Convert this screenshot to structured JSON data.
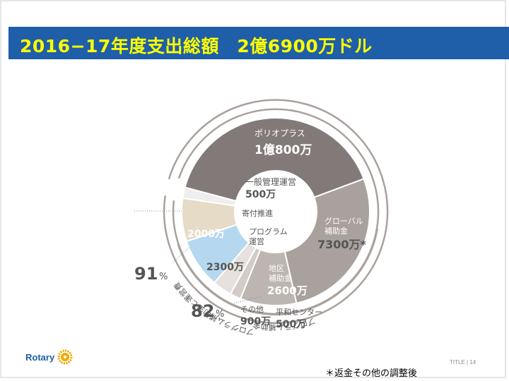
{
  "slide": {
    "title": "2016−17年度支出総額　2億6900万ドル",
    "logo_text": "Rotary",
    "footer_label": "TITLE",
    "page_number": "14",
    "footnote": "＊返金その他の調整後"
  },
  "chart_data": {
    "type": "pie",
    "style": "donut",
    "title": "2016−17年度支出総額 2億6900万ドル",
    "unit": "万ドル",
    "total": 26900,
    "slices": [
      {
        "key": "polio",
        "name": "ポリオプラス",
        "name_lines": [
          "ポリオプラス"
        ],
        "value": 10800,
        "value_label": "1億800万",
        "color": "#827a78"
      },
      {
        "key": "global",
        "name": "グローバル補助金",
        "name_lines": [
          "グローバル",
          "補助金"
        ],
        "value": 7300,
        "value_label": "7300万*",
        "color": "#a9a19d"
      },
      {
        "key": "district",
        "name": "地区補助金",
        "name_lines": [
          "地区",
          "補助金"
        ],
        "value": 2600,
        "value_label": "2600万",
        "color": "#bdb5b1"
      },
      {
        "key": "peace",
        "name": "平和センター",
        "name_lines": [
          "平和センター"
        ],
        "value": 500,
        "value_label": "500万",
        "color": "#d2cbc7"
      },
      {
        "key": "other",
        "name": "その他",
        "name_lines": [
          "その他"
        ],
        "value": 900,
        "value_label": "900万",
        "color": "#e6e1de"
      },
      {
        "key": "program_ops",
        "name": "プログラム運営",
        "name_lines": [
          "プログラム",
          "運営"
        ],
        "value": 2300,
        "value_label": "2300万",
        "color": "#b5d8f0"
      },
      {
        "key": "fundraising",
        "name": "寄付推進",
        "name_lines": [
          "寄付推進"
        ],
        "value": 2000,
        "value_label": "2000万",
        "color": "#e6dbc6"
      },
      {
        "key": "admin",
        "name": "一般管理運営",
        "name_lines": [
          "一般管理運営"
        ],
        "value": 500,
        "value_label": "500万",
        "color": "#eeeeee"
      }
    ],
    "annotations": [
      {
        "key": "pct91",
        "percent": "91",
        "unit": "%",
        "label": "プログラム補助金と運営費"
      },
      {
        "key": "pct82",
        "percent": "82",
        "unit": "%",
        "label": "プログラム補助金"
      }
    ],
    "colors": {
      "label_light": "#ffffff",
      "label_dark": "#555555",
      "arc": "#a9a19d"
    }
  }
}
